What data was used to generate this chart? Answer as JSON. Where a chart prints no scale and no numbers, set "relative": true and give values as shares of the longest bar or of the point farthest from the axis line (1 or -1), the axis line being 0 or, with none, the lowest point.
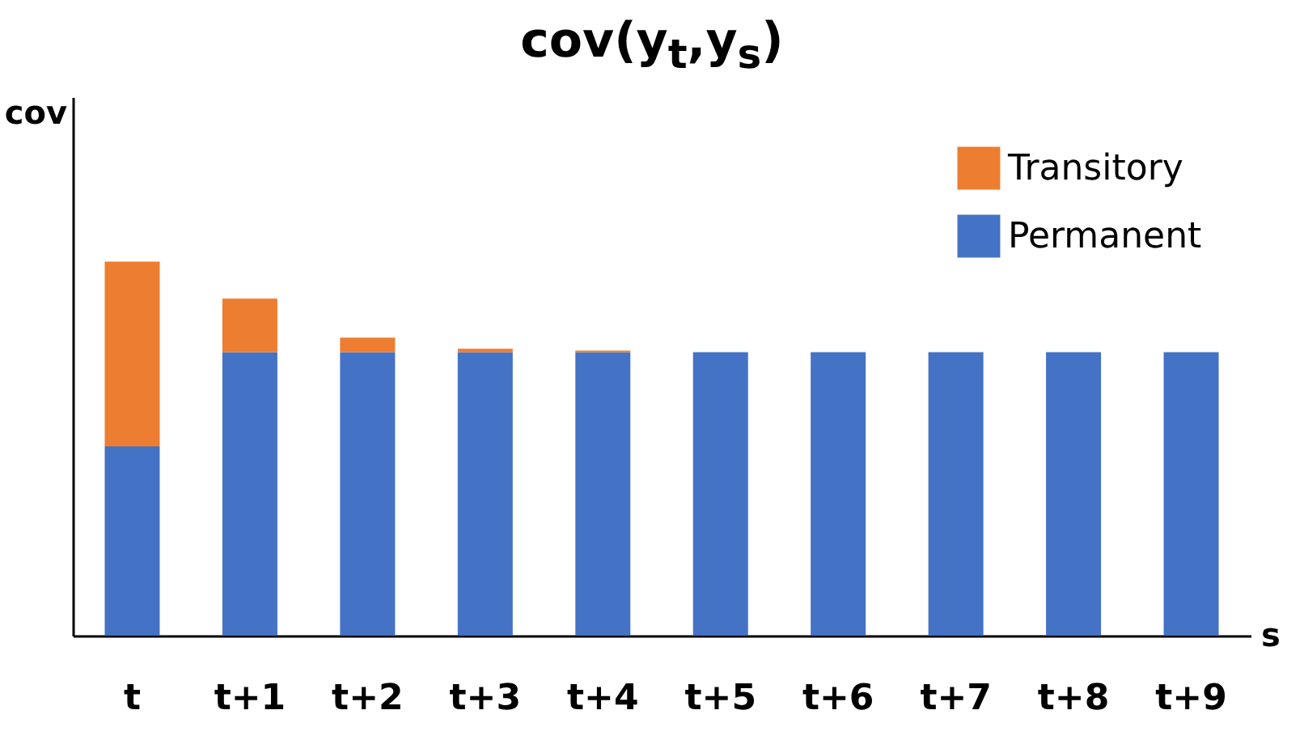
{
  "chart_data": {
    "type": "bar",
    "title": "cov(y$_{t}$,y$_{s}$)",
    "xlabel": "s",
    "ylabel": "cov",
    "stacked": true,
    "relative": true,
    "legend": "top right",
    "grid": false,
    "categories": [
      "t",
      "t+1",
      "t+2",
      "t+3",
      "t+4",
      "t+5",
      "t+6",
      "t+7",
      "t+8",
      "t+9"
    ],
    "series": [
      {
        "name": "Permanent",
        "color": "#4472c4",
        "values": [
          0.506,
          0.758,
          0.758,
          0.758,
          0.758,
          0.758,
          0.758,
          0.758,
          0.758,
          0.758
        ]
      },
      {
        "name": "Transitory",
        "color": "#ed7d31",
        "values": [
          0.494,
          0.143,
          0.039,
          0.009,
          0.004,
          0,
          0,
          0,
          0,
          0
        ]
      }
    ]
  }
}
